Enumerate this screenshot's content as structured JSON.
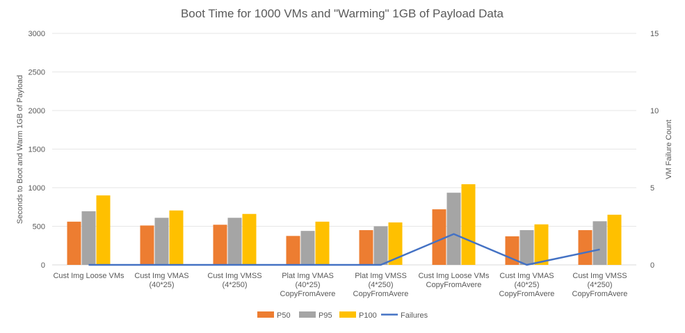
{
  "chart_data": {
    "type": "bar",
    "title": "Boot Time for 1000 VMs and \"Warming\" 1GB of Payload Data",
    "ylabel": "Seconds to Boot and Warm 1GB of Payload",
    "y2label": "VM Failure Count",
    "ylim": [
      0,
      3000
    ],
    "y2lim": [
      0,
      15
    ],
    "yticks": [
      "0",
      "500",
      "1000",
      "1500",
      "2000",
      "2500",
      "3000"
    ],
    "y2ticks": [
      "0",
      "5",
      "10",
      "15"
    ],
    "grid": true,
    "legend_position": "bottom",
    "categories": [
      [
        "Cust Img Loose VMs"
      ],
      [
        "Cust Img VMAS",
        "(40*25)"
      ],
      [
        "Cust Img VMSS",
        "(4*250)"
      ],
      [
        "Plat Img VMAS",
        "(40*25)",
        "CopyFromAvere"
      ],
      [
        "Plat Img VMSS",
        "(4*250)",
        "CopyFromAvere"
      ],
      [
        "Cust Img Loose VMs",
        "CopyFromAvere"
      ],
      [
        "Cust Img VMAS",
        "(40*25)",
        "CopyFromAvere"
      ],
      [
        "Cust Img VMSS",
        "(4*250)",
        "CopyFromAvere"
      ]
    ],
    "series": [
      {
        "name": "P50",
        "type": "bar",
        "axis": "primary",
        "color": "#ed7d31",
        "values": [
          560,
          510,
          520,
          375,
          450,
          720,
          370,
          450
        ]
      },
      {
        "name": "P95",
        "type": "bar",
        "axis": "primary",
        "color": "#a5a5a5",
        "values": [
          695,
          610,
          610,
          440,
          500,
          935,
          450,
          565
        ]
      },
      {
        "name": "P100",
        "type": "bar",
        "axis": "primary",
        "color": "#ffc000",
        "values": [
          900,
          705,
          660,
          560,
          550,
          1045,
          525,
          650
        ]
      },
      {
        "name": "Failures",
        "type": "line",
        "axis": "secondary",
        "color": "#4472c4",
        "values": [
          0,
          0,
          0,
          0,
          0,
          2,
          0,
          1
        ]
      }
    ]
  }
}
